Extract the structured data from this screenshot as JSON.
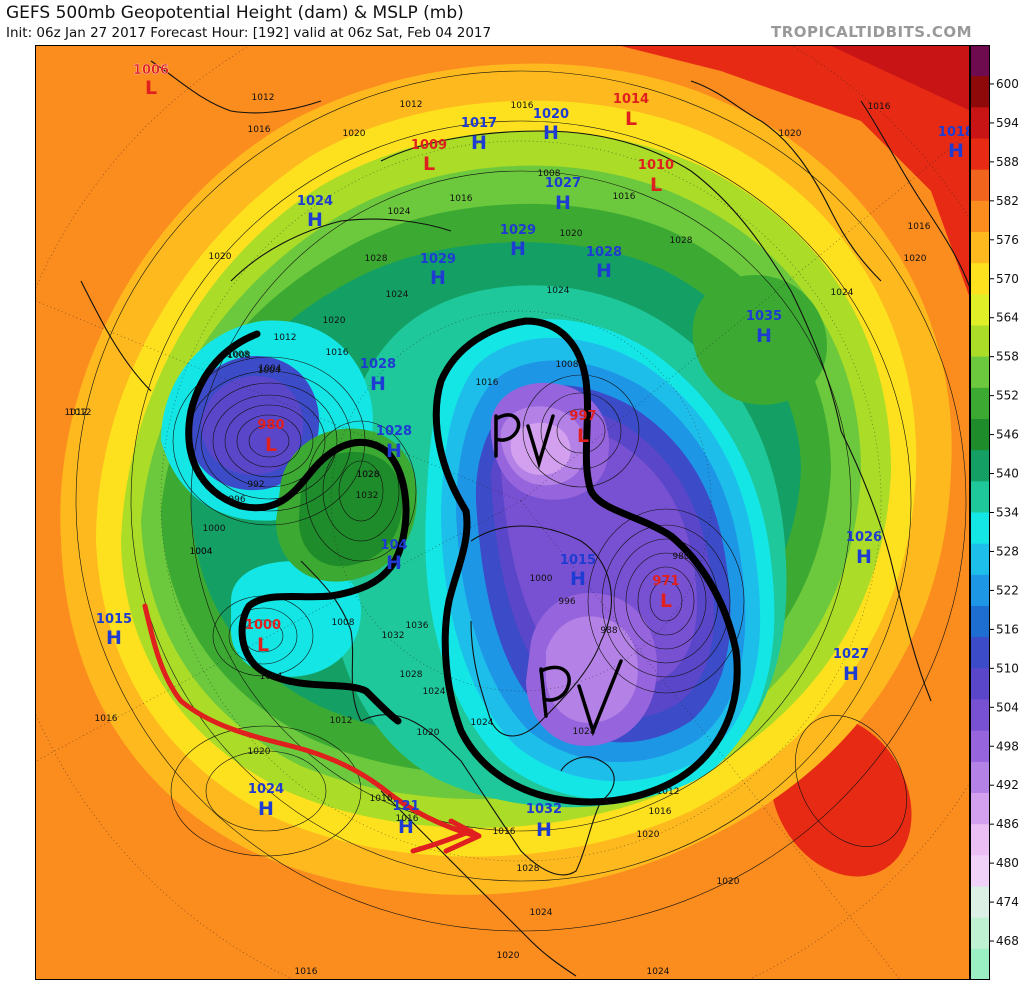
{
  "header": {
    "title": "GEFS 500mb Geopotential Height (dam) & MSLP (mb)",
    "subtitle": "Init: 06z Jan 27 2017   Forecast Hour: [192]   valid at 06z Sat, Feb 04 2017",
    "brand": "TROPICALTIDBITS.COM"
  },
  "legend": {
    "labels": [
      "600",
      "594",
      "588",
      "582",
      "576",
      "570",
      "564",
      "558",
      "552",
      "546",
      "540",
      "534",
      "528",
      "522",
      "516",
      "510",
      "504",
      "498",
      "492",
      "486",
      "480",
      "474",
      "468"
    ],
    "colors": [
      "#6e0a4e",
      "#8e0a0a",
      "#c81414",
      "#e62a14",
      "#f0641e",
      "#fb8c1e",
      "#fdb91e",
      "#fde11e",
      "#e0ee28",
      "#aadc28",
      "#6cc83c",
      "#3caa32",
      "#1e8c2a",
      "#14a064",
      "#1ec89b",
      "#14e6e6",
      "#1ebeeb",
      "#1e96e6",
      "#1e6ed2",
      "#3c4bc8",
      "#5a46c8",
      "#7850d2",
      "#9664dc",
      "#b482e6",
      "#d2a0ee",
      "#ebbef4",
      "#f0d2f8",
      "#dcf0e6",
      "#bef0d2",
      "#9bf0c3"
    ]
  },
  "pressure_centers": [
    {
      "type": "L",
      "value": "1006"
    },
    {
      "type": "L",
      "value": "1014"
    },
    {
      "type": "H",
      "value": "1018"
    },
    {
      "type": "H",
      "value": "1017"
    },
    {
      "type": "H",
      "value": "1020"
    },
    {
      "type": "L",
      "value": "1009"
    },
    {
      "type": "L",
      "value": "1010"
    },
    {
      "type": "H",
      "value": "1024"
    },
    {
      "type": "H",
      "value": "1027"
    },
    {
      "type": "H",
      "value": "1029"
    },
    {
      "type": "H",
      "value": "1028"
    },
    {
      "type": "H",
      "value": "1029"
    },
    {
      "type": "H",
      "value": "1025"
    },
    {
      "type": "H",
      "value": "1035"
    },
    {
      "type": "H",
      "value": "1028"
    },
    {
      "type": "L",
      "value": "980"
    },
    {
      "type": "H",
      "value": "1028"
    },
    {
      "type": "L",
      "value": "997"
    },
    {
      "type": "H",
      "value": "104"
    },
    {
      "type": "H",
      "value": "1015"
    },
    {
      "type": "L",
      "value": "971"
    },
    {
      "type": "H",
      "value": "1026"
    },
    {
      "type": "H",
      "value": "1015"
    },
    {
      "type": "L",
      "value": "1000"
    },
    {
      "type": "H",
      "value": "1027"
    },
    {
      "type": "H",
      "value": "1024"
    },
    {
      "type": "H",
      "value": "121"
    },
    {
      "type": "H",
      "value": "1032"
    }
  ],
  "isobar_labels": [
    "1012",
    "1016",
    "1012",
    "1020",
    "1016",
    "1016",
    "1008",
    "1024",
    "1016",
    "1020",
    "1016",
    "1020",
    "1028",
    "1012",
    "1008",
    "1004",
    "1012",
    "1016",
    "1024",
    "1024",
    "1028",
    "1008",
    "1016",
    "1020",
    "1020",
    "1028",
    "1024",
    "1008",
    "1004",
    "1004",
    "1012",
    "992",
    "996",
    "1000",
    "1004",
    "1028",
    "1032",
    "1000",
    "996",
    "988",
    "980",
    "1008",
    "1036",
    "1032",
    "1004",
    "1028",
    "1024",
    "1016",
    "1012",
    "1024",
    "1028",
    "1020",
    "1016",
    "1012",
    "1016",
    "1020",
    "1020",
    "1016",
    "1016",
    "1028",
    "1024",
    "1020",
    "1016",
    "1020",
    "1020",
    "1016",
    "1024"
  ],
  "annotations": {
    "pv_label": "PV"
  }
}
